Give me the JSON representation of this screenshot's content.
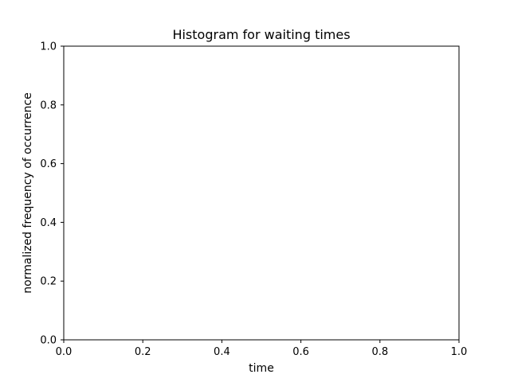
{
  "chart_data": {
    "type": "bar",
    "title": "Histogram for waiting times",
    "xlabel": "time",
    "ylabel": "normalized frequency of occurrence",
    "xlim": [
      0.0,
      1.0
    ],
    "ylim": [
      0.0,
      1.0
    ],
    "xticks": [
      "0.0",
      "0.2",
      "0.4",
      "0.6",
      "0.8",
      "1.0"
    ],
    "yticks": [
      "0.0",
      "0.2",
      "0.4",
      "0.6",
      "0.8",
      "1.0"
    ],
    "bins": [],
    "values": [],
    "grid": false,
    "axis_color": "#000000",
    "background_color": "#ffffff"
  }
}
